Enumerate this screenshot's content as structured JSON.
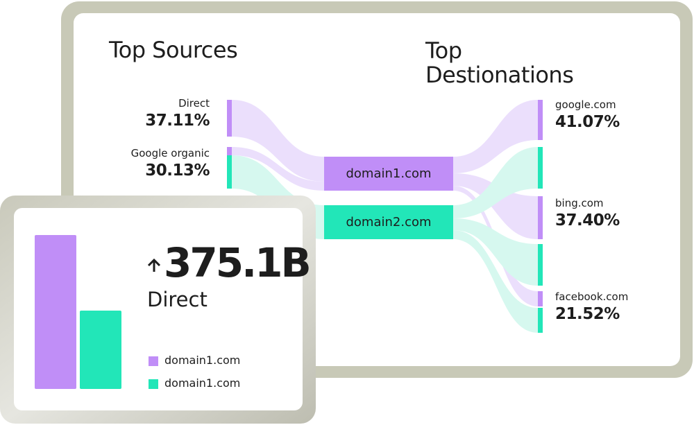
{
  "sources": {
    "title": "Top Sources",
    "items": [
      {
        "label": "Direct",
        "value": "37.11%"
      },
      {
        "label": "Google organic",
        "value": "30.13%"
      }
    ]
  },
  "domains": [
    "domain1.com",
    "domain2.com"
  ],
  "destinations": {
    "title": "Top Destionations",
    "items": [
      {
        "label": "google.com",
        "value": "41.07%"
      },
      {
        "label": "bing.com",
        "value": "37.40%"
      },
      {
        "label": "facebook.com",
        "value": "21.52%"
      }
    ]
  },
  "card": {
    "value": "375.1B",
    "label": "Direct",
    "legend": [
      "domain1.com",
      "domain1.com"
    ]
  }
}
